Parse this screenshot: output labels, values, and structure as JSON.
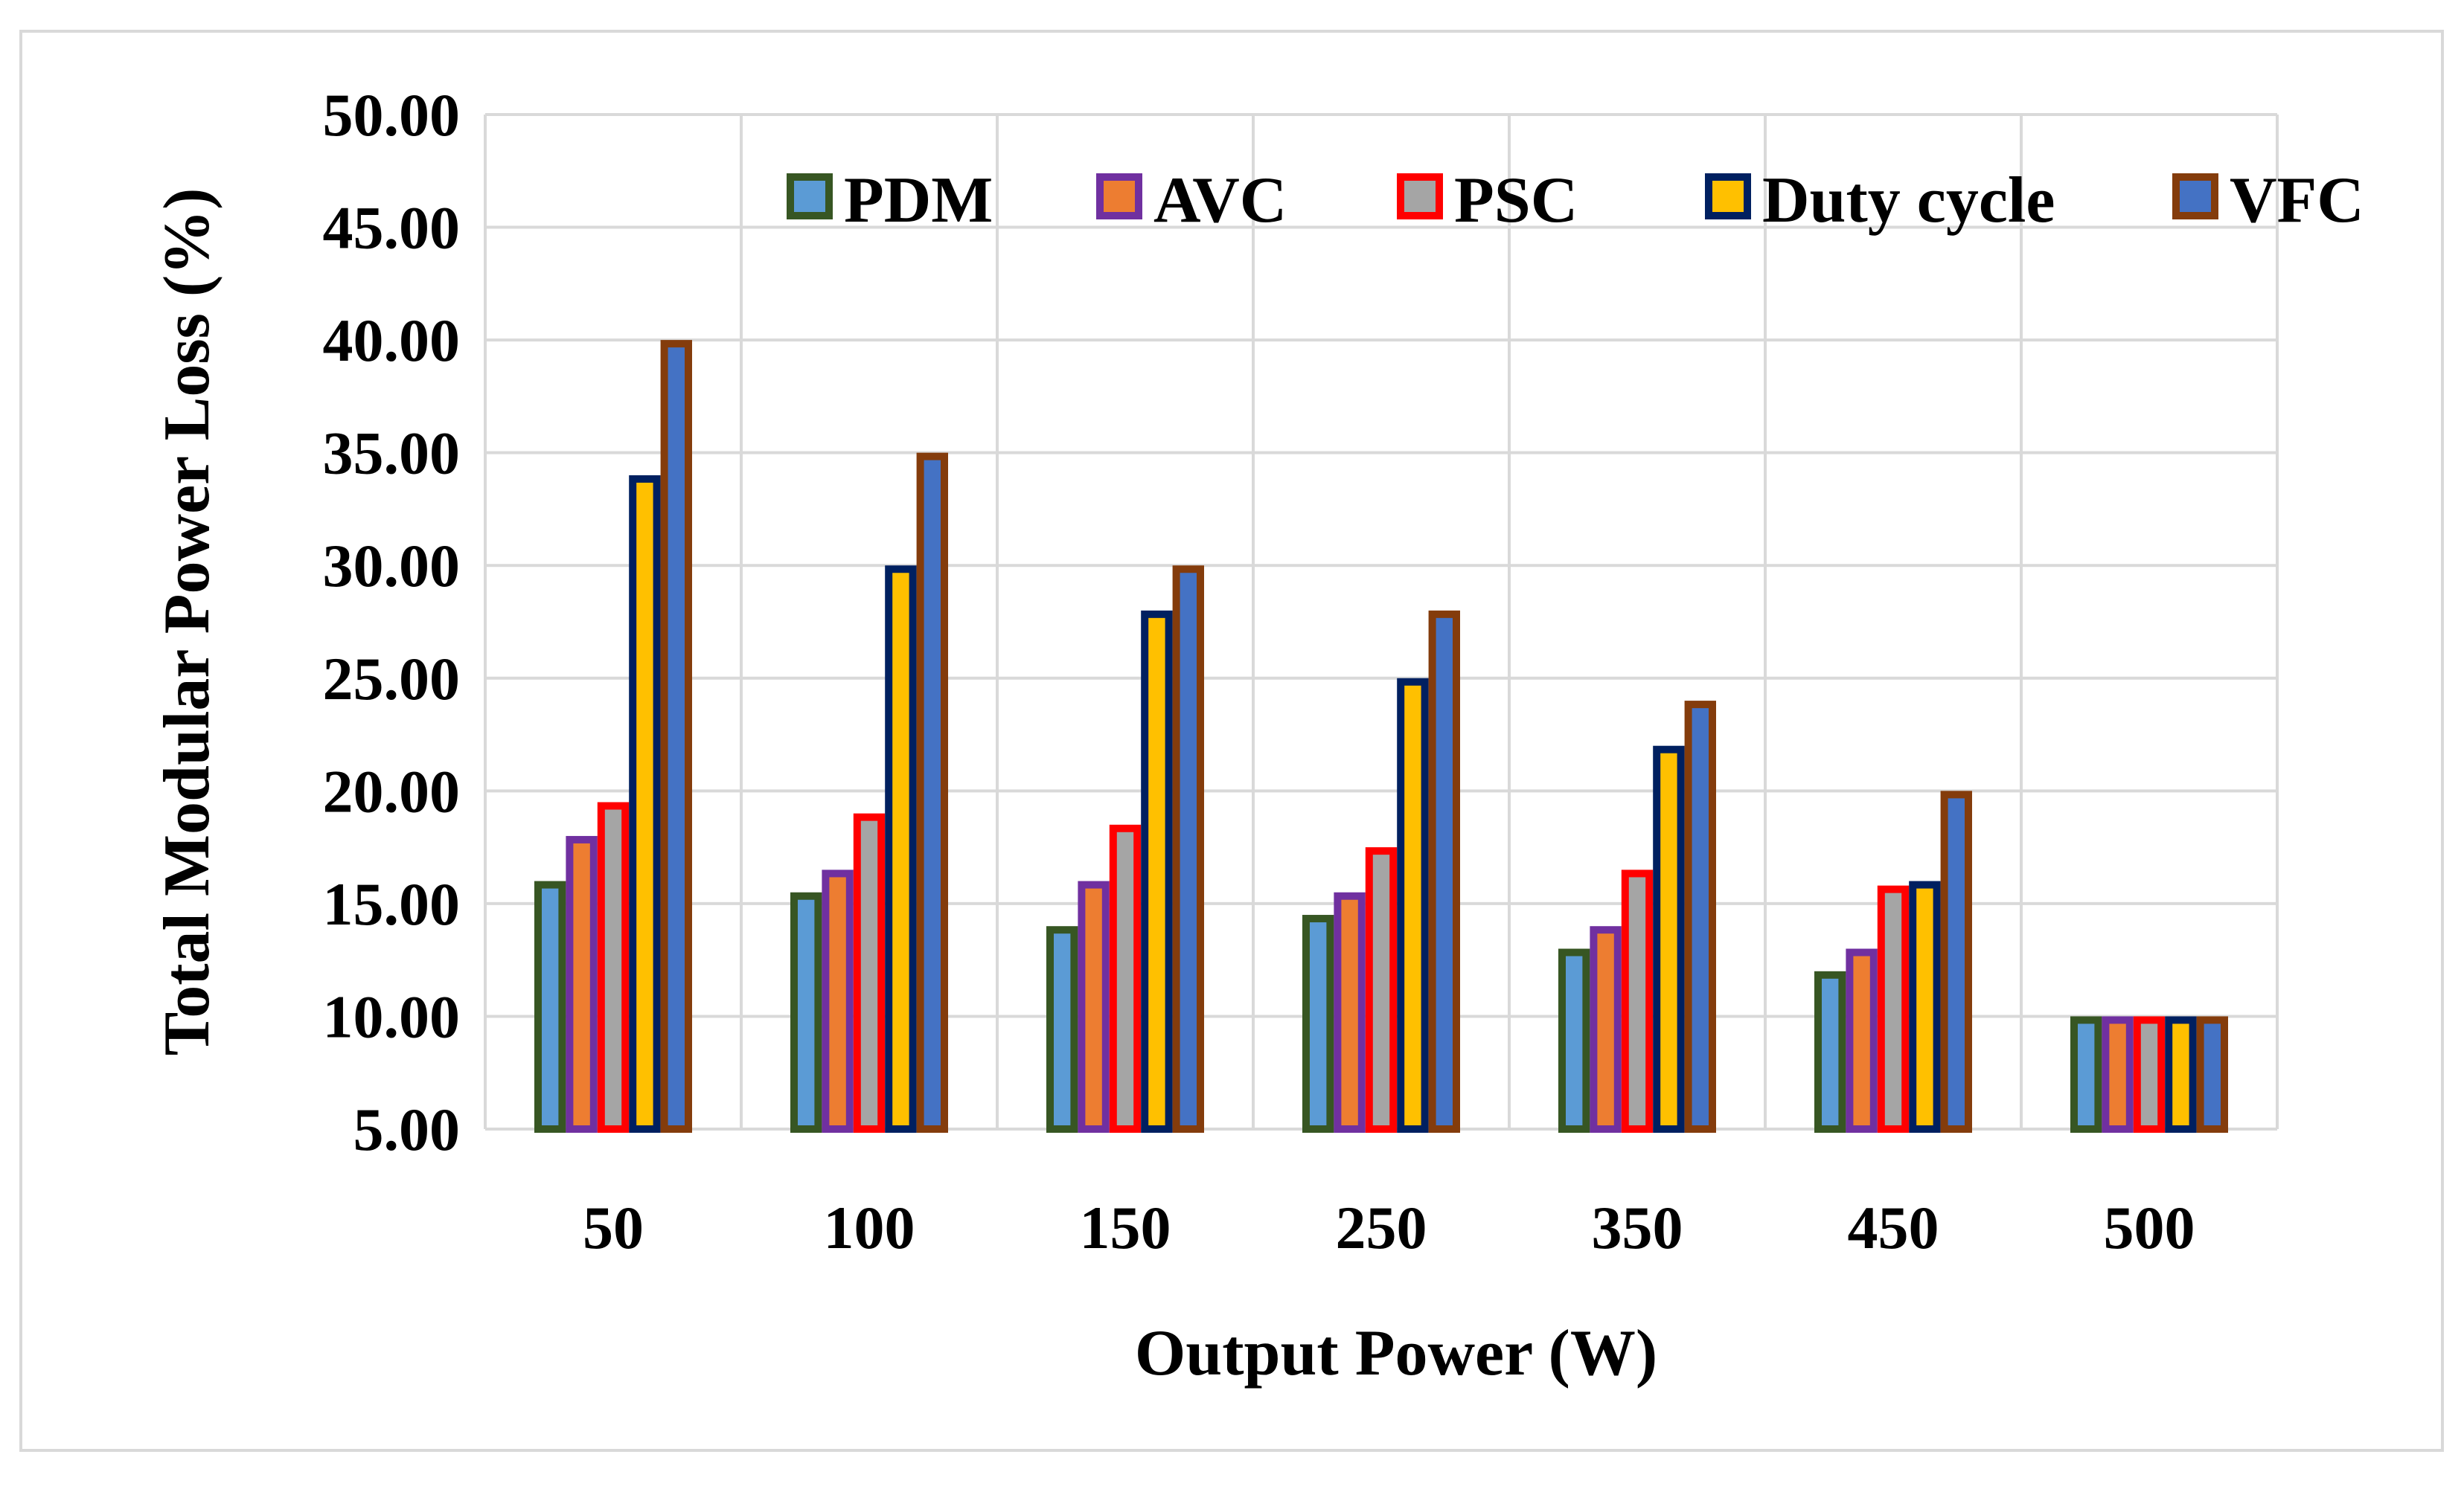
{
  "chart_data": {
    "type": "bar",
    "title": "",
    "xlabel": "Output Power (W)",
    "ylabel": "Total Modular Power Loss (%)",
    "ylim": [
      5,
      50
    ],
    "y_ticks": [
      "5.00",
      "10.00",
      "15.00",
      "20.00",
      "25.00",
      "30.00",
      "35.00",
      "40.00",
      "45.00",
      "50.00"
    ],
    "grid": true,
    "legend_position": "top",
    "categories": [
      "50",
      "100",
      "150",
      "250",
      "350",
      "450",
      "500"
    ],
    "series": [
      {
        "name": "PDM",
        "values": [
          16.0,
          15.5,
          14.0,
          14.5,
          13.0,
          12.0,
          10.0
        ],
        "fill": "#5b9bd5",
        "border": "#375623"
      },
      {
        "name": "AVC",
        "values": [
          18.0,
          16.5,
          16.0,
          15.5,
          14.0,
          13.0,
          10.0
        ],
        "fill": "#ed7d31",
        "border": "#7030a0"
      },
      {
        "name": "PSC",
        "values": [
          19.5,
          19.0,
          18.5,
          17.5,
          16.5,
          15.8,
          10.0
        ],
        "fill": "#a5a5a5",
        "border": "#ff0000"
      },
      {
        "name": "Duty cycle",
        "values": [
          34.0,
          30.0,
          28.0,
          25.0,
          22.0,
          16.0,
          10.0
        ],
        "fill": "#ffc000",
        "border": "#002060"
      },
      {
        "name": "VFC",
        "values": [
          40.0,
          35.0,
          30.0,
          28.0,
          24.0,
          20.0,
          10.0
        ],
        "fill": "#4472c4",
        "border": "#843c0c"
      }
    ]
  }
}
